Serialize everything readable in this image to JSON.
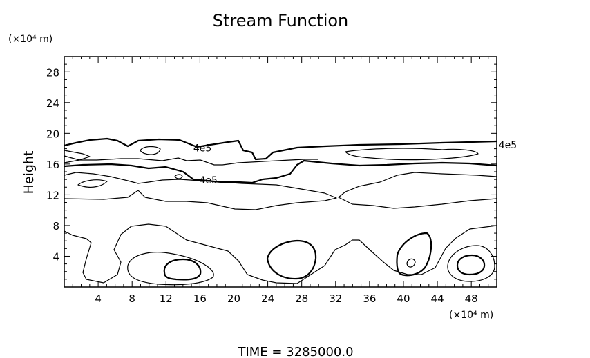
{
  "chart_data": {
    "type": "contour",
    "title": "Stream Function",
    "ylabel": "Height",
    "xlabel": "",
    "x_unit": "(×10⁴ m)",
    "y_unit": "(×10⁴ m)",
    "xlim": [
      0,
      51
    ],
    "ylim": [
      0,
      30
    ],
    "x_ticks": [
      4,
      8,
      12,
      16,
      20,
      24,
      28,
      32,
      36,
      40,
      44,
      48
    ],
    "y_ticks": [
      4,
      8,
      12,
      16,
      20,
      24,
      28
    ],
    "contour_labels": [
      {
        "text": "4e5",
        "x": 16.3,
        "y": 18.1
      },
      {
        "text": "4e5",
        "x": 17.0,
        "y": 13.9
      },
      {
        "text": "4e5",
        "x": 52.3,
        "y": 18.5
      }
    ],
    "time_label": "TIME  =  3285000.0"
  }
}
